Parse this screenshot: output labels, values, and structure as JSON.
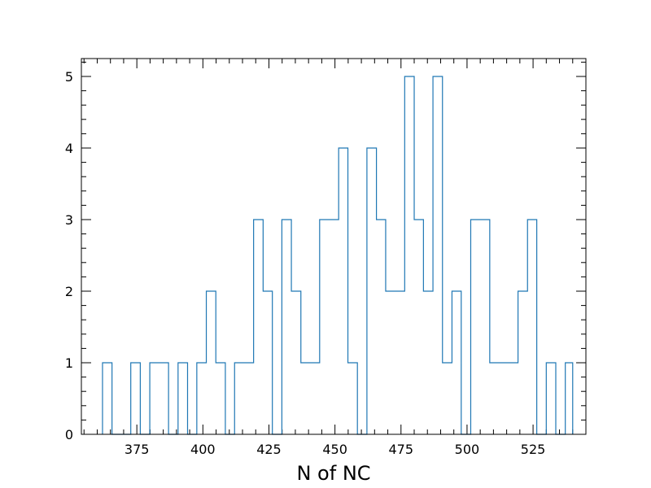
{
  "chart_data": {
    "type": "histogram",
    "title": "",
    "xlabel": "N of NC",
    "ylabel": "",
    "xlim": [
      354,
      545
    ],
    "ylim": [
      0,
      5.25
    ],
    "grid": false,
    "x_ticks_major": [
      375,
      400,
      425,
      450,
      475,
      500,
      525
    ],
    "y_ticks_major": [
      0,
      1,
      2,
      3,
      4,
      5
    ],
    "bin_edges": [
      362.0,
      365.6,
      369.1,
      372.7,
      376.3,
      379.9,
      383.4,
      387.0,
      390.6,
      394.2,
      397.7,
      401.3,
      404.9,
      408.5,
      412.0,
      415.6,
      419.2,
      422.8,
      426.3,
      429.9,
      433.5,
      437.1,
      440.6,
      444.2,
      447.8,
      451.4,
      454.9,
      458.5,
      462.1,
      465.7,
      469.2,
      472.8,
      476.4,
      480.0,
      483.5,
      487.1,
      490.7,
      494.3,
      497.8,
      501.4,
      505.0,
      508.6,
      512.1,
      515.7,
      519.3,
      522.9,
      526.4,
      530.0,
      533.6,
      537.2,
      540.0
    ],
    "counts": [
      1,
      0,
      0,
      1,
      0,
      1,
      1,
      0,
      1,
      0,
      1,
      2,
      1,
      0,
      1,
      1,
      3,
      2,
      0,
      3,
      2,
      1,
      1,
      3,
      3,
      4,
      1,
      0,
      4,
      3,
      2,
      2,
      5,
      3,
      2,
      5,
      1,
      2,
      0,
      3,
      3,
      1,
      1,
      1,
      2,
      3,
      0,
      1,
      0,
      1
    ],
    "series_color": "#1f77b4"
  }
}
